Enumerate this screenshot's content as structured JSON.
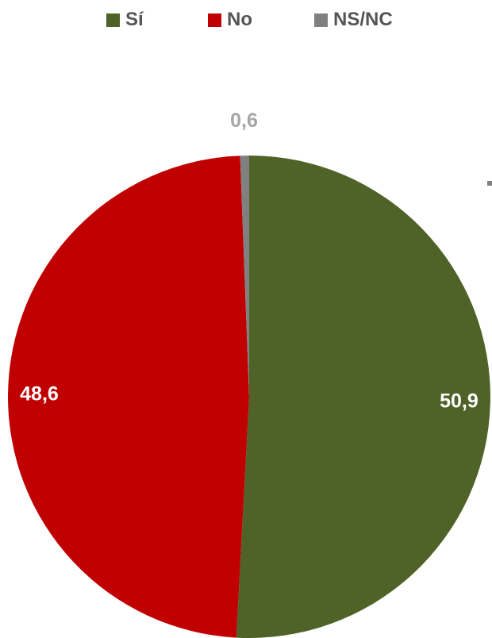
{
  "chart_data": {
    "type": "pie",
    "title": "",
    "legend_position": "top",
    "slices": [
      {
        "label": "Sí",
        "value": 50.9,
        "display": "50,9",
        "color": "#4f6228"
      },
      {
        "label": "No",
        "value": 48.6,
        "display": "48,6",
        "color": "#c00000"
      },
      {
        "label": "NS/NC",
        "value": 0.6,
        "display": "0,6",
        "color": "#808080"
      }
    ]
  }
}
